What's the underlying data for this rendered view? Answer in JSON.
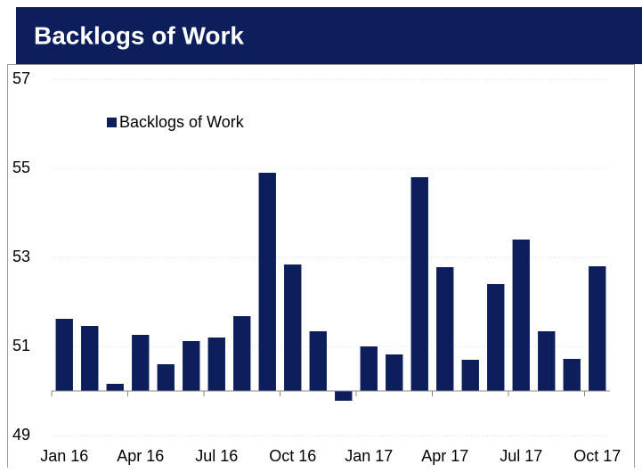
{
  "chart_data": {
    "type": "bar",
    "title": "Backlogs of Work",
    "categories": [
      "Jan 16",
      null,
      null,
      "Apr 16",
      null,
      null,
      "Jul 16",
      null,
      null,
      "Oct 16",
      null,
      null,
      "Jan 17",
      null,
      null,
      "Apr 17",
      null,
      null,
      "Jul 17",
      null,
      null,
      "Oct 17"
    ],
    "series": [
      {
        "name": "Backlogs of Work",
        "color": "#0c1f5c",
        "values": [
          51.62,
          51.46,
          50.16,
          51.26,
          50.6,
          51.12,
          51.2,
          51.68,
          54.9,
          52.84,
          51.34,
          49.78,
          51.0,
          50.82,
          54.8,
          52.78,
          50.7,
          52.4,
          53.4,
          51.34,
          50.72,
          52.8
        ]
      }
    ],
    "baseline": 50,
    "ylim": [
      49,
      57
    ],
    "yticks": [
      49,
      51,
      53,
      55,
      57
    ],
    "grid": true,
    "legend": "top-left"
  }
}
